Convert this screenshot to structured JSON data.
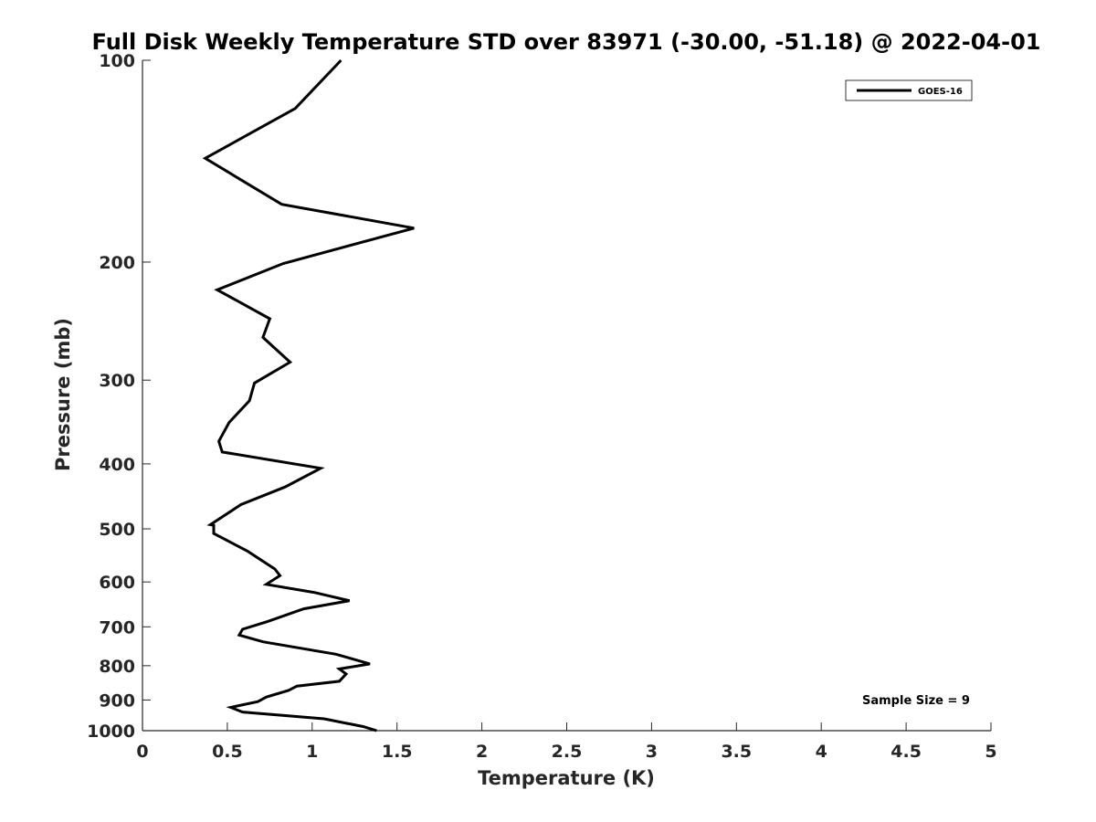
{
  "chart_data": {
    "type": "line",
    "title": "Full Disk Weekly Temperature STD over 83971 (-30.00, -51.18) @ 2022-04-01",
    "xlabel": "Temperature (K)",
    "ylabel": "Pressure (mb)",
    "xlim": [
      0,
      5
    ],
    "ylim": [
      100,
      1000
    ],
    "yscale": "log",
    "yreversed": true,
    "x_ticks": [
      0,
      0.5,
      1,
      1.5,
      2,
      2.5,
      3,
      3.5,
      4,
      4.5,
      5
    ],
    "x_tick_labels": [
      "0",
      "0.5",
      "1",
      "1.5",
      "2",
      "2.5",
      "3",
      "3.5",
      "4",
      "4.5",
      "5"
    ],
    "y_ticks": [
      100,
      200,
      300,
      400,
      500,
      600,
      700,
      800,
      900,
      1000
    ],
    "y_tick_labels": [
      "100",
      "200",
      "300",
      "400",
      "500",
      "600",
      "700",
      "800",
      "900",
      "1000"
    ],
    "grid": false,
    "legend_position": "top-right",
    "annotation": "Sample Size = 9",
    "series": [
      {
        "name": "GOES-16",
        "color": "#000000",
        "x": [
          1.17,
          0.9,
          0.37,
          0.82,
          1.6,
          0.83,
          0.44,
          0.75,
          0.71,
          0.87,
          0.66,
          0.63,
          0.51,
          0.45,
          0.47,
          1.05,
          0.84,
          0.58,
          0.4,
          0.42,
          0.42,
          0.62,
          0.78,
          0.81,
          0.73,
          1.01,
          1.22,
          0.95,
          0.74,
          0.59,
          0.57,
          0.71,
          1.14,
          1.34,
          1.16,
          1.2,
          1.16,
          0.91,
          0.86,
          0.73,
          0.68,
          0.52,
          0.59,
          1.07,
          1.3,
          1.38
        ],
        "y": [
          100,
          118,
          140,
          164,
          178,
          201,
          220,
          243,
          259,
          282,
          303,
          322,
          347,
          370,
          384,
          406,
          433,
          460,
          493,
          494,
          508,
          540,
          574,
          587,
          605,
          622,
          640,
          658,
          687,
          706,
          720,
          737,
          769,
          795,
          809,
          823,
          844,
          858,
          871,
          891,
          905,
          923,
          938,
          960,
          986,
          1000
        ]
      }
    ]
  }
}
